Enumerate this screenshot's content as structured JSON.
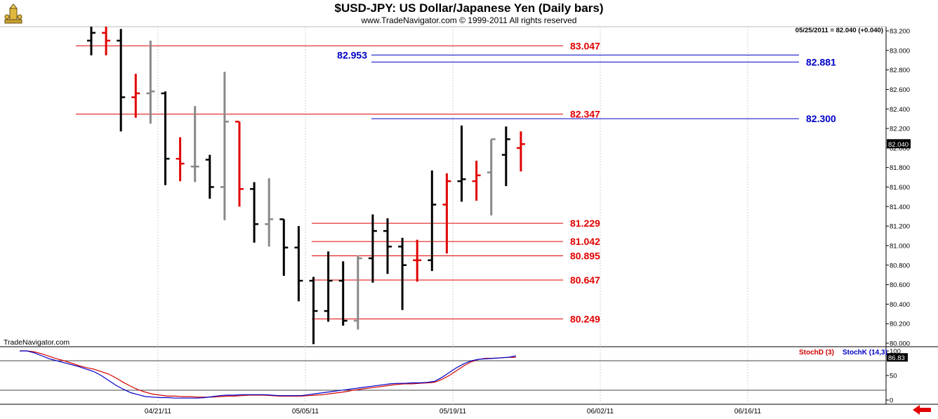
{
  "header": {
    "title": "$USD-JPY:  US Dollar/Japanese Yen  (Daily bars)",
    "subtitle": "www.TradeNavigator.com © 1999-2011 All rights reserved"
  },
  "watermark": "TradeNavigator.com",
  "colors": {
    "up_bar": "#000000",
    "down_bar": "#e00000",
    "neutral_bar": "#888888",
    "red_level": "#e00000",
    "blue_level": "#0000c8",
    "stoch_d": "#d00000",
    "stoch_k": "#0000c8",
    "price_tag_bg": "#000000"
  },
  "chart_data": [
    {
      "type": "ohlc",
      "title": "$USD-JPY:  US Dollar/Japanese Yen  (Daily bars)",
      "readout": "05/25/2011 = 82.040 (+0.040)",
      "last_price_label": "82.040",
      "ylim": [
        80.0,
        83.2
      ],
      "y_ticks": [
        "83.200",
        "83.000",
        "82.800",
        "82.600",
        "82.400",
        "82.200",
        "82.000",
        "81.800",
        "81.600",
        "81.400",
        "81.200",
        "81.000",
        "80.800",
        "80.600",
        "80.400",
        "80.200",
        "80.000"
      ],
      "x_ticks": [
        "04/21/11",
        "05/05/11",
        "05/19/11",
        "06/02/11",
        "06/16/11"
      ],
      "bars": [
        {
          "c": "up",
          "o": 83.1,
          "h": 83.35,
          "l": 82.95,
          "cl": 83.18
        },
        {
          "c": "dn",
          "o": 83.18,
          "h": 83.25,
          "l": 82.95,
          "cl": 83.1
        },
        {
          "c": "up",
          "o": 83.1,
          "h": 83.22,
          "l": 82.17,
          "cl": 82.52
        },
        {
          "c": "dn",
          "o": 82.52,
          "h": 82.76,
          "l": 82.31,
          "cl": 82.56
        },
        {
          "c": "ng",
          "o": 82.56,
          "h": 83.1,
          "l": 82.25,
          "cl": 82.58
        },
        {
          "c": "up",
          "o": 82.56,
          "h": 82.58,
          "l": 81.62,
          "cl": 81.89
        },
        {
          "c": "dn",
          "o": 81.89,
          "h": 82.11,
          "l": 81.66,
          "cl": 81.84
        },
        {
          "c": "ng",
          "o": 81.81,
          "h": 82.43,
          "l": 81.65,
          "cl": 81.81
        },
        {
          "c": "up",
          "o": 81.88,
          "h": 81.93,
          "l": 81.48,
          "cl": 81.6
        },
        {
          "c": "ng",
          "o": 81.6,
          "h": 82.78,
          "l": 81.26,
          "cl": 82.27
        },
        {
          "c": "dn",
          "o": 82.27,
          "h": 82.27,
          "l": 81.4,
          "cl": 81.58
        },
        {
          "c": "up",
          "o": 81.58,
          "h": 81.65,
          "l": 81.03,
          "cl": 81.22
        },
        {
          "c": "ng",
          "o": 81.22,
          "h": 81.69,
          "l": 80.99,
          "cl": 81.27
        },
        {
          "c": "up",
          "o": 81.27,
          "h": 81.27,
          "l": 80.69,
          "cl": 80.98
        },
        {
          "c": "up",
          "o": 80.98,
          "h": 81.2,
          "l": 80.43,
          "cl": 80.64
        },
        {
          "c": "up",
          "o": 80.64,
          "h": 80.68,
          "l": 79.99,
          "cl": 80.33
        },
        {
          "c": "up",
          "o": 80.33,
          "h": 80.94,
          "l": 80.22,
          "cl": 80.64
        },
        {
          "c": "up",
          "o": 80.64,
          "h": 80.84,
          "l": 80.18,
          "cl": 80.23
        },
        {
          "c": "ng",
          "o": 80.23,
          "h": 80.9,
          "l": 80.14,
          "cl": 80.87
        },
        {
          "c": "up",
          "o": 80.87,
          "h": 81.32,
          "l": 80.62,
          "cl": 81.15
        },
        {
          "c": "up",
          "o": 81.15,
          "h": 81.28,
          "l": 80.71,
          "cl": 80.99
        },
        {
          "c": "up",
          "o": 80.99,
          "h": 81.08,
          "l": 80.34,
          "cl": 80.8
        },
        {
          "c": "dn",
          "o": 80.85,
          "h": 81.06,
          "l": 80.63,
          "cl": 80.85
        },
        {
          "c": "up",
          "o": 80.85,
          "h": 81.77,
          "l": 80.74,
          "cl": 81.42
        },
        {
          "c": "dn",
          "o": 81.42,
          "h": 81.74,
          "l": 80.92,
          "cl": 81.66
        },
        {
          "c": "up",
          "o": 81.66,
          "h": 82.23,
          "l": 81.45,
          "cl": 81.68
        },
        {
          "c": "dn",
          "o": 81.66,
          "h": 81.87,
          "l": 81.46,
          "cl": 81.72
        },
        {
          "c": "ng",
          "o": 81.75,
          "h": 82.09,
          "l": 81.31,
          "cl": 82.09
        },
        {
          "c": "up",
          "o": 81.93,
          "h": 82.22,
          "l": 81.61,
          "cl": 82.09
        },
        {
          "c": "dn",
          "o": 82.0,
          "h": 82.17,
          "l": 81.76,
          "cl": 82.04
        }
      ],
      "red_levels": [
        {
          "value": 83.047,
          "label": "83.047",
          "from_bar": 0
        },
        {
          "value": 82.347,
          "label": "82.347",
          "from_bar": 0
        },
        {
          "value": 81.229,
          "label": "81.229",
          "from_bar": 15
        },
        {
          "value": 81.042,
          "label": "81.042",
          "from_bar": 15
        },
        {
          "value": 80.895,
          "label": "80.895",
          "from_bar": 15
        },
        {
          "value": 80.647,
          "label": "80.647",
          "from_bar": 15
        },
        {
          "value": 80.249,
          "label": "80.249",
          "from_bar": 15
        }
      ],
      "blue_levels": [
        {
          "value": 82.953,
          "label": "82.953",
          "label_side": "left"
        },
        {
          "value": 82.881,
          "label": "82.881",
          "label_side": "right"
        },
        {
          "value": 82.3,
          "label": "82.300",
          "label_side": "right"
        }
      ]
    },
    {
      "type": "line",
      "title": "Stochastic",
      "ylim": [
        0,
        100
      ],
      "y_ticks": [
        "100",
        "50",
        "0"
      ],
      "last_value_label": "86.83",
      "reference_lines": [
        80,
        20
      ],
      "series": [
        {
          "name": "StochD (3)",
          "values": [
            100,
            100,
            98,
            94,
            89,
            84,
            80,
            75,
            70,
            66,
            63,
            58,
            53,
            45,
            36,
            28,
            21,
            16,
            12,
            10,
            8,
            8,
            7,
            7,
            6,
            6,
            6,
            7,
            8,
            8,
            9,
            10,
            10,
            10,
            9,
            8,
            8,
            8,
            8,
            9,
            10,
            11,
            13,
            15,
            17,
            20,
            22,
            24,
            26,
            28,
            30,
            32,
            33,
            33,
            34,
            35,
            36,
            42,
            50,
            60,
            70,
            78,
            83,
            85,
            85,
            86,
            87,
            87
          ]
        },
        {
          "name": "StochK (14,3)",
          "values": [
            100,
            100,
            96,
            90,
            84,
            80,
            76,
            72,
            68,
            63,
            58,
            50,
            40,
            30,
            22,
            15,
            11,
            7,
            6,
            5,
            5,
            4,
            4,
            4,
            4,
            5,
            7,
            9,
            10,
            10,
            11,
            11,
            11,
            11,
            10,
            9,
            9,
            9,
            9,
            11,
            13,
            15,
            17,
            19,
            21,
            23,
            25,
            27,
            29,
            31,
            33,
            34,
            34,
            35,
            35,
            36,
            38,
            46,
            56,
            66,
            74,
            80,
            83,
            84,
            85,
            86,
            87,
            90
          ]
        }
      ]
    }
  ]
}
